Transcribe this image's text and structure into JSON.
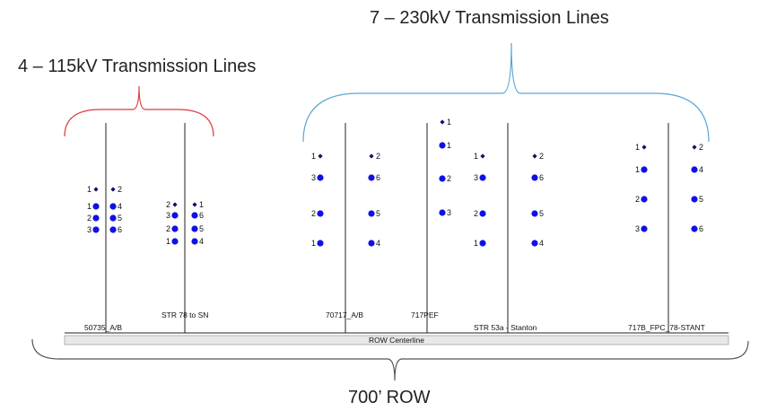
{
  "labels": {
    "title_115": "4 – 115kV Transmission Lines",
    "title_230": "7 – 230kV Transmission Lines",
    "row_width": "700’ ROW",
    "centerline": "ROW Centerline"
  },
  "colors": {
    "bracket_115": "#e03c3c",
    "bracket_230": "#5aa6d2",
    "bracket_row": "#555555",
    "conductor": "#1010e6",
    "shield": "#101070",
    "pole": "#222222"
  },
  "structures": [
    {
      "id": "50735",
      "name": "50735_A/B",
      "sides": 2
    },
    {
      "id": "str78",
      "name": "STR 78 to SN",
      "sides": 2
    },
    {
      "id": "70717",
      "name": "70717_A/B",
      "sides": 2
    },
    {
      "id": "717pef",
      "name": "717PEF",
      "sides": 1
    },
    {
      "id": "str53a",
      "name": "STR 53a - Stanton",
      "sides": 2
    },
    {
      "id": "717b",
      "name": "717B_FPC_78-STANT",
      "sides": 2
    }
  ],
  "phase_labels": {
    "s50735_left": [
      "1",
      "1",
      "2",
      "3"
    ],
    "s50735_right": [
      "2",
      "4",
      "5",
      "6"
    ],
    "s78_left": [
      "2",
      "3",
      "2",
      "1"
    ],
    "s78_right": [
      "1",
      "6",
      "5",
      "4"
    ],
    "s70717_left": [
      "1",
      "3",
      "2",
      "1"
    ],
    "s70717_right": [
      "2",
      "6",
      "5",
      "4"
    ],
    "s717pef": [
      "1",
      "1",
      "2",
      "3"
    ],
    "s53a_left": [
      "1",
      "3",
      "2",
      "1"
    ],
    "s53a_right": [
      "2",
      "6",
      "5",
      "4"
    ],
    "s717b_left": [
      "1",
      "1",
      "2",
      "3"
    ],
    "s717b_right": [
      "2",
      "4",
      "5",
      "6"
    ]
  }
}
